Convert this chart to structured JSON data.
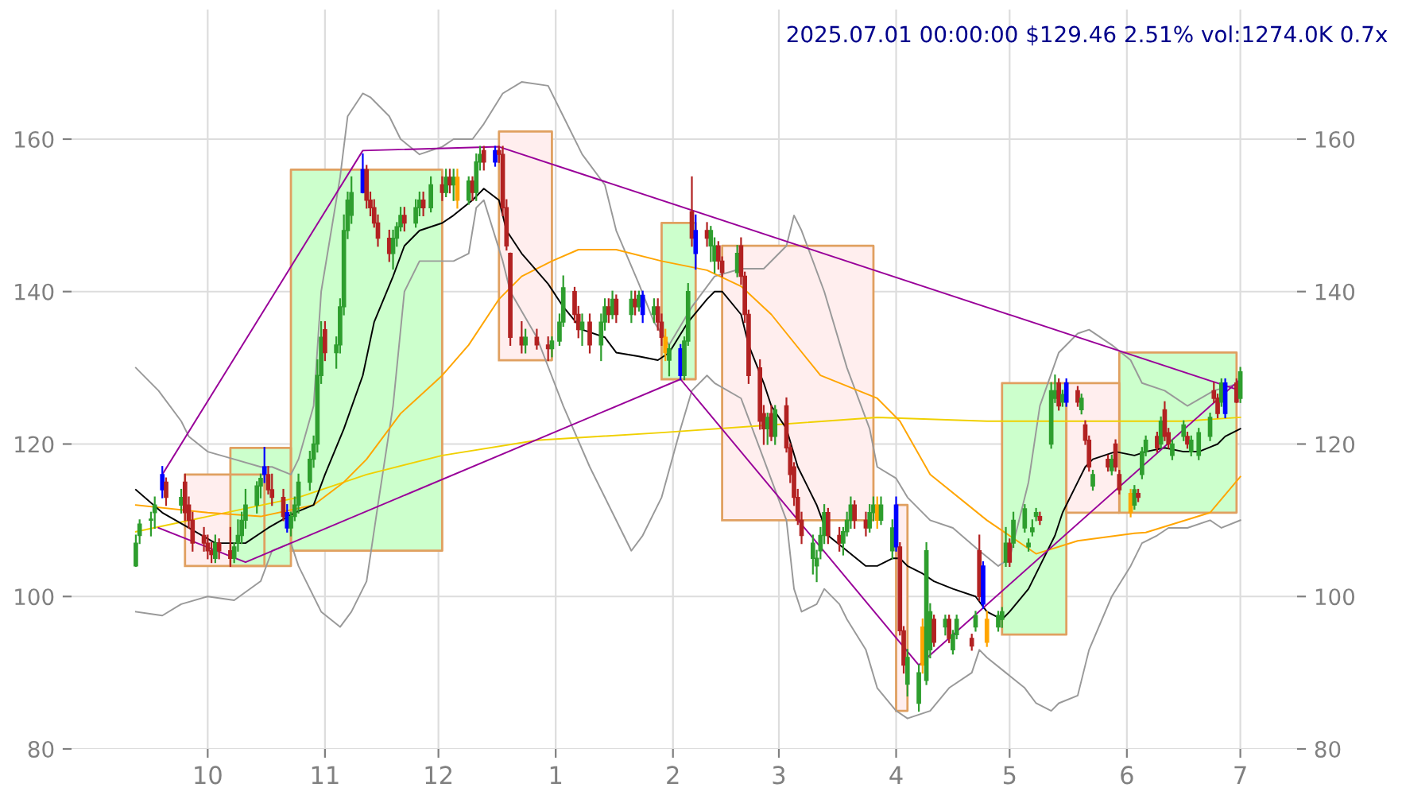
{
  "chart_data": {
    "type": "candlestick",
    "title": "2025.07.01 00:00:00 $129.46 2.51% vol:1274.0K 0.7x",
    "xlim": [
      "2024-08-26",
      "2025-07-16"
    ],
    "xticks": [
      {
        "value": "2024-10",
        "label": "10"
      },
      {
        "value": "2024-11",
        "label": "11"
      },
      {
        "value": "2024-12",
        "label": "12"
      },
      {
        "value": "2025-01",
        "label": "1"
      },
      {
        "value": "2025-02",
        "label": "2"
      },
      {
        "value": "2025-03",
        "label": "3"
      },
      {
        "value": "2025-04",
        "label": "4"
      },
      {
        "value": "2025-05",
        "label": "5"
      },
      {
        "value": "2025-06",
        "label": "6"
      },
      {
        "value": "2025-07",
        "label": "7"
      }
    ],
    "ylim": [
      80,
      177
    ],
    "yticks": [
      80,
      100,
      120,
      140,
      160
    ],
    "y2lim": [
      80,
      177
    ],
    "y2ticks": [
      80,
      100,
      120,
      140,
      160
    ],
    "grid": true,
    "x": [
      "2024-09-12",
      "2024-09-13",
      "2024-09-16",
      "2024-09-17",
      "2024-09-19",
      "2024-09-20",
      "2024-09-24",
      "2024-09-25",
      "2024-09-26",
      "2024-09-27",
      "2024-09-30",
      "2024-10-01",
      "2024-10-02",
      "2024-10-03",
      "2024-10-04",
      "2024-10-07",
      "2024-10-08",
      "2024-10-09",
      "2024-10-10",
      "2024-10-11",
      "2024-10-14",
      "2024-10-15",
      "2024-10-16",
      "2024-10-17",
      "2024-10-18",
      "2024-10-21",
      "2024-10-22",
      "2024-10-23",
      "2024-10-24",
      "2024-10-25",
      "2024-10-28",
      "2024-10-29",
      "2024-10-30",
      "2024-10-31",
      "2024-11-01",
      "2024-11-04",
      "2024-11-05",
      "2024-11-06",
      "2024-11-07",
      "2024-11-08",
      "2024-11-11",
      "2024-11-12",
      "2024-11-13",
      "2024-11-14",
      "2024-11-15",
      "2024-11-18",
      "2024-11-19",
      "2024-11-20",
      "2024-11-21",
      "2024-11-22",
      "2024-11-25",
      "2024-11-26",
      "2024-11-27",
      "2024-11-29",
      "2024-12-02",
      "2024-12-03",
      "2024-12-04",
      "2024-12-05",
      "2024-12-06",
      "2024-12-09",
      "2024-12-10",
      "2024-12-11",
      "2024-12-12",
      "2024-12-13",
      "2024-12-16",
      "2024-12-17",
      "2024-12-18",
      "2024-12-19",
      "2024-12-20",
      "2024-12-23",
      "2024-12-24",
      "2024-12-27",
      "2024-12-30",
      "2024-12-31",
      "2025-01-02",
      "2025-01-03",
      "2025-01-06",
      "2025-01-07",
      "2025-01-08",
      "2025-01-10",
      "2025-01-13",
      "2025-01-14",
      "2025-01-15",
      "2025-01-16",
      "2025-01-17",
      "2025-01-21",
      "2025-01-22",
      "2025-01-23",
      "2025-01-24",
      "2025-01-27",
      "2025-01-28",
      "2025-01-29",
      "2025-01-30",
      "2025-01-31",
      "2025-02-03",
      "2025-02-04",
      "2025-02-05",
      "2025-02-06",
      "2025-02-07",
      "2025-02-10",
      "2025-02-11",
      "2025-02-12",
      "2025-02-13",
      "2025-02-14",
      "2025-02-18",
      "2025-02-19",
      "2025-02-20",
      "2025-02-21",
      "2025-02-24",
      "2025-02-25",
      "2025-02-26",
      "2025-02-27",
      "2025-02-28",
      "2025-03-03",
      "2025-03-04",
      "2025-03-05",
      "2025-03-06",
      "2025-03-07",
      "2025-03-10",
      "2025-03-11",
      "2025-03-12",
      "2025-03-13",
      "2025-03-14",
      "2025-03-17",
      "2025-03-18",
      "2025-03-19",
      "2025-03-20",
      "2025-03-21",
      "2025-03-24",
      "2025-03-25",
      "2025-03-26",
      "2025-03-27",
      "2025-03-28",
      "2025-03-31",
      "2025-04-01",
      "2025-04-02",
      "2025-04-03",
      "2025-04-04",
      "2025-04-07",
      "2025-04-08",
      "2025-04-09",
      "2025-04-10",
      "2025-04-11",
      "2025-04-14",
      "2025-04-15",
      "2025-04-16",
      "2025-04-17",
      "2025-04-21",
      "2025-04-22",
      "2025-04-23",
      "2025-04-24",
      "2025-04-25",
      "2025-04-28",
      "2025-04-29",
      "2025-04-30",
      "2025-05-01",
      "2025-05-02",
      "2025-05-05",
      "2025-05-06",
      "2025-05-07",
      "2025-05-08",
      "2025-05-09",
      "2025-05-12",
      "2025-05-13",
      "2025-05-14",
      "2025-05-15",
      "2025-05-16",
      "2025-05-19",
      "2025-05-20",
      "2025-05-21",
      "2025-05-22",
      "2025-05-23",
      "2025-05-27",
      "2025-05-28",
      "2025-05-29",
      "2025-05-30",
      "2025-06-02",
      "2025-06-03",
      "2025-06-04",
      "2025-06-05",
      "2025-06-06",
      "2025-06-09",
      "2025-06-10",
      "2025-06-11",
      "2025-06-12",
      "2025-06-13",
      "2025-06-16",
      "2025-06-17",
      "2025-06-18",
      "2025-06-20",
      "2025-06-23",
      "2025-06-24",
      "2025-06-25",
      "2025-06-26",
      "2025-06-27",
      "2025-06-30",
      "2025-07-01"
    ],
    "ohlc": [
      [
        104,
        108,
        104,
        107
      ],
      [
        108,
        110,
        107,
        109.5
      ],
      [
        110,
        111,
        108,
        110
      ],
      [
        111,
        113,
        109,
        112
      ],
      [
        114,
        117,
        113,
        116
      ],
      [
        115,
        115.5,
        112,
        113
      ],
      [
        112,
        114,
        111,
        113
      ],
      [
        115,
        116,
        110,
        111
      ],
      [
        112,
        113,
        109,
        110
      ],
      [
        110,
        111,
        106,
        107
      ],
      [
        108,
        109,
        106,
        107
      ],
      [
        107,
        108,
        105,
        106
      ],
      [
        106,
        107,
        104.5,
        105.5
      ],
      [
        105,
        108,
        104.5,
        107
      ],
      [
        107,
        107.5,
        105,
        106
      ],
      [
        106,
        109,
        104,
        105
      ],
      [
        105,
        107,
        104.5,
        106.5
      ],
      [
        107,
        110,
        106,
        108
      ],
      [
        108,
        111,
        107,
        110
      ],
      [
        110,
        114,
        109,
        112
      ],
      [
        112,
        115,
        111,
        114.5
      ],
      [
        114.5,
        116,
        113,
        115.5
      ],
      [
        116,
        119.5,
        115,
        117
      ],
      [
        116,
        117,
        113.5,
        114
      ],
      [
        114,
        116,
        112,
        113
      ],
      [
        113,
        114,
        110,
        110.5
      ],
      [
        111,
        112,
        108.5,
        109
      ],
      [
        109,
        111,
        108,
        110.5
      ],
      [
        110.5,
        113,
        110,
        112
      ],
      [
        112,
        116,
        111,
        115
      ],
      [
        115,
        119,
        114,
        118
      ],
      [
        118,
        121,
        117,
        120
      ],
      [
        120,
        131,
        119,
        129
      ],
      [
        129,
        136,
        128,
        134
      ],
      [
        135,
        136,
        131,
        132
      ],
      [
        132,
        134,
        130,
        133
      ],
      [
        133,
        139,
        132,
        138
      ],
      [
        138,
        150,
        137,
        148
      ],
      [
        148,
        153,
        147,
        152
      ],
      [
        150,
        155,
        149,
        153
      ],
      [
        153,
        158,
        153,
        156
      ],
      [
        156,
        156.5,
        151,
        152
      ],
      [
        152,
        153,
        150,
        151
      ],
      [
        151,
        152,
        148.5,
        149
      ],
      [
        149,
        150,
        146,
        147
      ],
      [
        147,
        148,
        144,
        145
      ],
      [
        145,
        148,
        143,
        147
      ],
      [
        147,
        149,
        146,
        148.5
      ],
      [
        148.5,
        151,
        148,
        150
      ],
      [
        150,
        151,
        148,
        149
      ],
      [
        149,
        152,
        148.5,
        151
      ],
      [
        151,
        153,
        150,
        152
      ],
      [
        152,
        153,
        150,
        151
      ],
      [
        151,
        155,
        150.5,
        154
      ],
      [
        154,
        155,
        152,
        153
      ],
      [
        153,
        156,
        152.5,
        155
      ],
      [
        155,
        156,
        153,
        154
      ],
      [
        154,
        156,
        152,
        155
      ],
      [
        155,
        156,
        151,
        152
      ],
      [
        152,
        155,
        151.5,
        154.5
      ],
      [
        154.5,
        155,
        152,
        153
      ],
      [
        153,
        158,
        152,
        157
      ],
      [
        157,
        159,
        156,
        158
      ],
      [
        158.5,
        159,
        156,
        157
      ],
      [
        157,
        159,
        156.5,
        158.5
      ],
      [
        158.5,
        159,
        157,
        158
      ],
      [
        158,
        159,
        150,
        151
      ],
      [
        151,
        152,
        145.5,
        146
      ],
      [
        145,
        145,
        133,
        134
      ],
      [
        134,
        136,
        132,
        133
      ],
      [
        133,
        135,
        132,
        134
      ],
      [
        134,
        135,
        132.5,
        133
      ],
      [
        133,
        134,
        131,
        132.5
      ],
      [
        132.5,
        134,
        131.5,
        133.5
      ],
      [
        133.5,
        137,
        133,
        136
      ],
      [
        136,
        142,
        135.5,
        140.5
      ],
      [
        140,
        140.5,
        136,
        137
      ],
      [
        137,
        138,
        134,
        135
      ],
      [
        135,
        137,
        133,
        136
      ],
      [
        136,
        137,
        132,
        133
      ],
      [
        133,
        137,
        131,
        136
      ],
      [
        136,
        139,
        135,
        138
      ],
      [
        138,
        139,
        136,
        137
      ],
      [
        137,
        140,
        136.5,
        139
      ],
      [
        139,
        139.5,
        136,
        137
      ],
      [
        137,
        140,
        136,
        139
      ],
      [
        139,
        140,
        137,
        138
      ],
      [
        138,
        140,
        137.5,
        139.5
      ],
      [
        139.5,
        140,
        136,
        137
      ],
      [
        137,
        139,
        136,
        138
      ],
      [
        138,
        139,
        135,
        136
      ],
      [
        136,
        137,
        133,
        134
      ],
      [
        134,
        135,
        131,
        132
      ],
      [
        131,
        133,
        129,
        132.5
      ],
      [
        132.5,
        133,
        128.5,
        129
      ],
      [
        129,
        134,
        128.5,
        133.5
      ],
      [
        133.5,
        141,
        133,
        140
      ],
      [
        150.5,
        155,
        146,
        147
      ],
      [
        148,
        150,
        143,
        145
      ],
      [
        148,
        149,
        146,
        147
      ],
      [
        146,
        148.5,
        144,
        148
      ],
      [
        144,
        147,
        142.5,
        146
      ],
      [
        146,
        146.5,
        143,
        144
      ],
      [
        144,
        144.5,
        142,
        142.5
      ],
      [
        142.5,
        146,
        142,
        145
      ],
      [
        146,
        147,
        141,
        142
      ],
      [
        142,
        142.5,
        136,
        137
      ],
      [
        137,
        137.5,
        128,
        129
      ],
      [
        130,
        131,
        122,
        123
      ],
      [
        124,
        125,
        120,
        122
      ],
      [
        122,
        124,
        120,
        123.5
      ],
      [
        124,
        125,
        120.5,
        121
      ],
      [
        121,
        125,
        120,
        124.5
      ],
      [
        125,
        126,
        119,
        119.5
      ],
      [
        119.5,
        120,
        115,
        116
      ],
      [
        117,
        117.5,
        112,
        113
      ],
      [
        113,
        114,
        109.5,
        110
      ],
      [
        110,
        111,
        107,
        108
      ],
      [
        105,
        108,
        103,
        107
      ],
      [
        104,
        106,
        102,
        105
      ],
      [
        106,
        109,
        105,
        108
      ],
      [
        108,
        112,
        107,
        111
      ],
      [
        111,
        111.5,
        107,
        108
      ],
      [
        108,
        109,
        106,
        107
      ],
      [
        107,
        109,
        105.5,
        108.5
      ],
      [
        108.5,
        111,
        108,
        110
      ],
      [
        110,
        113,
        109,
        112
      ],
      [
        112,
        112.5,
        109,
        110
      ],
      [
        110,
        111,
        108,
        109
      ],
      [
        109,
        112,
        108.5,
        111
      ],
      [
        111,
        113,
        110,
        112
      ],
      [
        112,
        113,
        109,
        110
      ],
      [
        110,
        113,
        109.5,
        112
      ],
      [
        106,
        110,
        105,
        109
      ],
      [
        106.5,
        113,
        106,
        112
      ],
      [
        106.5,
        107,
        95,
        95.5
      ],
      [
        95.5,
        96,
        90,
        91
      ],
      [
        88.5,
        93,
        87,
        92
      ],
      [
        86,
        91,
        85,
        90
      ],
      [
        96,
        97,
        90,
        91
      ],
      [
        89,
        107,
        88.5,
        106
      ],
      [
        93,
        99,
        92,
        98
      ],
      [
        97,
        97.5,
        93.5,
        94
      ],
      [
        96,
        97.5,
        95,
        97
      ],
      [
        97,
        97.5,
        94,
        94.5
      ],
      [
        93,
        95.5,
        92.5,
        95
      ],
      [
        95,
        97.5,
        94.5,
        97
      ],
      [
        94.5,
        95,
        93,
        93.5
      ],
      [
        96,
        98,
        95.5,
        97.5
      ],
      [
        106,
        108,
        99.5,
        100
      ],
      [
        99,
        104.5,
        98.5,
        104
      ],
      [
        97,
        98,
        93.5,
        94
      ],
      [
        96,
        98,
        95.5,
        97.5
      ],
      [
        97,
        98.5,
        96,
        98
      ],
      [
        104.5,
        109,
        104,
        107
      ],
      [
        107,
        107.5,
        104,
        104.5
      ],
      [
        107,
        111,
        106.5,
        110
      ],
      [
        109,
        112,
        108.5,
        111.5
      ],
      [
        106.5,
        107.5,
        106,
        107
      ],
      [
        108.5,
        110,
        108,
        109
      ],
      [
        110.5,
        111.5,
        110,
        111
      ],
      [
        110.5,
        111,
        109.5,
        110
      ],
      [
        120,
        128,
        119.5,
        127
      ],
      [
        126,
        129,
        125.5,
        127
      ],
      [
        128,
        128.5,
        124.5,
        125
      ],
      [
        125.5,
        127,
        125,
        126.5
      ],
      [
        125.5,
        128.5,
        125,
        128
      ],
      [
        127,
        127.5,
        125,
        125.5
      ],
      [
        124.5,
        126.5,
        124,
        126
      ],
      [
        122.5,
        123,
        120,
        120.5
      ],
      [
        120.5,
        121,
        116.5,
        117
      ],
      [
        114.5,
        116.5,
        114,
        116
      ],
      [
        118,
        118.5,
        116.5,
        117
      ],
      [
        116.5,
        118.5,
        116,
        118
      ],
      [
        120,
        120.5,
        116.5,
        117
      ],
      [
        116,
        116.5,
        113.5,
        114
      ],
      [
        111,
        114,
        110.5,
        113.5
      ],
      [
        112,
        114.5,
        111.5,
        114
      ],
      [
        113.5,
        114,
        112.5,
        113
      ],
      [
        116,
        119.5,
        115.5,
        119
      ],
      [
        119,
        121,
        118.5,
        120.5
      ],
      [
        121,
        121.5,
        119,
        119.5
      ],
      [
        120,
        123.5,
        119.5,
        123
      ],
      [
        124.5,
        125.5,
        120.5,
        121
      ],
      [
        121.5,
        122,
        119.5,
        120
      ],
      [
        118.5,
        120.5,
        118,
        120
      ],
      [
        121,
        123,
        120.5,
        122.5
      ],
      [
        121,
        121.5,
        119.5,
        120
      ],
      [
        119,
        121,
        118.5,
        120.5
      ],
      [
        118.5,
        122,
        118,
        121.5
      ],
      [
        121,
        124,
        120.5,
        123.5
      ],
      [
        127,
        128,
        125.5,
        126
      ],
      [
        126,
        126.5,
        123.5,
        124
      ],
      [
        125.5,
        128.5,
        125,
        128
      ],
      [
        124,
        128.5,
        123.5,
        128
      ],
      [
        128,
        128.5,
        125.5,
        125.5
      ],
      [
        126,
        130,
        125.5,
        129.46
      ]
    ],
    "colors": [
      "#2e9e2e",
      "#2e9e2e",
      "#2e9e2e",
      "#2e9e2e",
      "#0000ff",
      "#b22222",
      "#2e9e2e",
      "#b22222",
      "#b22222",
      "#b22222",
      "#b22222",
      "#b22222",
      "#b22222",
      "#2e9e2e",
      "#b22222",
      "#b22222",
      "#2e9e2e",
      "#2e9e2e",
      "#2e9e2e",
      "#2e9e2e",
      "#2e9e2e",
      "#2e9e2e",
      "#0000ff",
      "#b22222",
      "#b22222",
      "#b22222",
      "#0000ff",
      "#2e9e2e",
      "#2e9e2e",
      "#2e9e2e",
      "#2e9e2e",
      "#2e9e2e",
      "#2e9e2e",
      "#2e9e2e",
      "#b22222",
      "#2e9e2e",
      "#2e9e2e",
      "#2e9e2e",
      "#2e9e2e",
      "#2e9e2e",
      "#0000ff",
      "#b22222",
      "#b22222",
      "#b22222",
      "#b22222",
      "#b22222",
      "#2e9e2e",
      "#2e9e2e",
      "#2e9e2e",
      "#b22222",
      "#2e9e2e",
      "#2e9e2e",
      "#b22222",
      "#2e9e2e",
      "#b22222",
      "#2e9e2e",
      "#b22222",
      "#2e9e2e",
      "#ffa500",
      "#2e9e2e",
      "#b22222",
      "#2e9e2e",
      "#2e9e2e",
      "#b22222",
      "#0000ff",
      "#b22222",
      "#b22222",
      "#b22222",
      "#b22222",
      "#b22222",
      "#2e9e2e",
      "#b22222",
      "#b22222",
      "#2e9e2e",
      "#2e9e2e",
      "#2e9e2e",
      "#b22222",
      "#b22222",
      "#2e9e2e",
      "#b22222",
      "#2e9e2e",
      "#2e9e2e",
      "#b22222",
      "#2e9e2e",
      "#b22222",
      "#2e9e2e",
      "#b22222",
      "#2e9e2e",
      "#0000ff",
      "#2e9e2e",
      "#b22222",
      "#b22222",
      "#ffa500",
      "#2e9e2e",
      "#0000ff",
      "#2e9e2e",
      "#2e9e2e",
      "#b22222",
      "#0000ff",
      "#b22222",
      "#2e9e2e",
      "#2e9e2e",
      "#b22222",
      "#b22222",
      "#2e9e2e",
      "#b22222",
      "#b22222",
      "#b22222",
      "#b22222",
      "#b22222",
      "#2e9e2e",
      "#b22222",
      "#2e9e2e",
      "#b22222",
      "#b22222",
      "#b22222",
      "#b22222",
      "#b22222",
      "#2e9e2e",
      "#2e9e2e",
      "#2e9e2e",
      "#2e9e2e",
      "#b22222",
      "#b22222",
      "#2e9e2e",
      "#2e9e2e",
      "#2e9e2e",
      "#b22222",
      "#b22222",
      "#2e9e2e",
      "#2e9e2e",
      "#ffa500",
      "#2e9e2e",
      "#2e9e2e",
      "#0000ff",
      "#b22222",
      "#b22222",
      "#2e9e2e",
      "#2e9e2e",
      "#ffa500",
      "#2e9e2e",
      "#2e9e2e",
      "#b22222",
      "#2e9e2e",
      "#b22222",
      "#2e9e2e",
      "#2e9e2e",
      "#b22222",
      "#2e9e2e",
      "#b22222",
      "#0000ff",
      "#ffa500",
      "#2e9e2e",
      "#2e9e2e",
      "#2e9e2e",
      "#b22222",
      "#2e9e2e",
      "#2e9e2e",
      "#2e9e2e",
      "#2e9e2e",
      "#2e9e2e",
      "#b22222",
      "#2e9e2e",
      "#2e9e2e",
      "#b22222",
      "#2e9e2e",
      "#0000ff",
      "#b22222",
      "#2e9e2e",
      "#b22222",
      "#b22222",
      "#2e9e2e",
      "#b22222",
      "#2e9e2e",
      "#b22222",
      "#b22222",
      "#ffa500",
      "#2e9e2e",
      "#b22222",
      "#2e9e2e",
      "#2e9e2e",
      "#b22222",
      "#2e9e2e",
      "#b22222",
      "#b22222",
      "#2e9e2e",
      "#2e9e2e",
      "#b22222",
      "#2e9e2e",
      "#2e9e2e",
      "#2e9e2e",
      "#b22222",
      "#b22222",
      "#2e9e2e",
      "#0000ff",
      "#b22222",
      "#2e9e2e"
    ],
    "series": [
      {
        "type": "area",
        "color": "#ffeeee",
        "x": [
          "2024-09-25",
          "2024-09-25",
          "2024-10-16",
          "2024-10-16",
          "2024-09-25"
        ],
        "values": [
          104,
          116,
          116,
          104,
          104
        ]
      },
      {
        "type": "area",
        "color": "#ccffcc",
        "x": [
          "2024-10-07",
          "2024-10-07",
          "2024-10-23",
          "2024-10-23",
          "2024-10-07"
        ],
        "values": [
          104,
          119.5,
          119.5,
          104,
          104
        ]
      },
      {
        "type": "area",
        "color": "#ccffcc",
        "x": [
          "2024-10-23",
          "2024-10-23",
          "2024-12-02",
          "2024-12-02",
          "2024-10-23"
        ],
        "values": [
          106,
          156,
          156,
          106,
          106
        ]
      },
      {
        "type": "area",
        "color": "#ffeeee",
        "x": [
          "2024-12-17",
          "2024-12-17",
          "2024-12-31",
          "2024-12-31",
          "2024-12-17"
        ],
        "values": [
          131,
          161,
          161,
          131,
          131
        ]
      },
      {
        "type": "area",
        "color": "#ccffcc",
        "x": [
          "2025-01-29",
          "2025-01-29",
          "2025-02-07",
          "2025-02-07",
          "2025-01-29"
        ],
        "values": [
          128.5,
          149,
          149,
          128.5,
          128.5
        ]
      },
      {
        "type": "area",
        "color": "#ffeeee",
        "x": [
          "2025-02-14",
          "2025-02-14",
          "2025-03-26",
          "2025-03-26",
          "2025-02-14"
        ],
        "values": [
          110,
          146,
          146,
          110,
          110
        ]
      },
      {
        "type": "area",
        "color": "#ffeeee",
        "x": [
          "2025-04-01",
          "2025-04-01",
          "2025-04-04",
          "2025-04-04",
          "2025-04-01"
        ],
        "values": [
          85,
          112,
          112,
          85,
          85
        ]
      },
      {
        "type": "area",
        "color": "#ccffcc",
        "x": [
          "2025-04-29",
          "2025-04-29",
          "2025-05-16",
          "2025-05-16",
          "2025-04-29"
        ],
        "values": [
          95,
          128,
          128,
          95,
          95
        ]
      },
      {
        "type": "area",
        "color": "#ffeeee",
        "x": [
          "2025-05-16",
          "2025-05-16",
          "2025-05-30",
          "2025-05-30",
          "2025-05-16"
        ],
        "values": [
          111,
          128,
          128,
          111,
          111
        ]
      },
      {
        "type": "area",
        "color": "#ccffcc",
        "x": [
          "2025-05-30",
          "2025-05-30",
          "2025-06-30",
          "2025-06-30",
          "2025-05-30"
        ],
        "values": [
          111,
          132,
          132,
          111,
          111
        ]
      },
      {
        "type": "line",
        "color": "#999999",
        "x": [
          "2024-09-12",
          "2024-09-18",
          "2024-09-24",
          "2024-09-26",
          "2024-10-01",
          "2024-10-08",
          "2024-10-15",
          "2024-10-18",
          "2024-10-23",
          "2024-10-25",
          "2024-10-29",
          "2024-10-31",
          "2024-11-05",
          "2024-11-07",
          "2024-11-11",
          "2024-11-13",
          "2024-11-18",
          "2024-11-21",
          "2024-11-26",
          "2024-12-02",
          "2024-12-05",
          "2024-12-10",
          "2024-12-13",
          "2024-12-18",
          "2024-12-23",
          "2024-12-30",
          "2025-01-03",
          "2025-01-08",
          "2025-01-14",
          "2025-01-17",
          "2025-01-23",
          "2025-01-27",
          "2025-01-31",
          "2025-02-06",
          "2025-02-12",
          "2025-02-19",
          "2025-02-25",
          "2025-03-03",
          "2025-03-05",
          "2025-03-07",
          "2025-03-13",
          "2025-03-19",
          "2025-03-25",
          "2025-03-27",
          "2025-04-01",
          "2025-04-04",
          "2025-04-10",
          "2025-04-16",
          "2025-04-23",
          "2025-04-28",
          "2025-05-01",
          "2025-05-06",
          "2025-05-09",
          "2025-05-14",
          "2025-05-19",
          "2025-05-22",
          "2025-05-28",
          "2025-06-02",
          "2025-06-05",
          "2025-06-11",
          "2025-06-17",
          "2025-06-24",
          "2025-07-01"
        ],
        "values": [
          130,
          127,
          123,
          121,
          119,
          118,
          117,
          117,
          116,
          118,
          125,
          140,
          155,
          163,
          166,
          165.5,
          163,
          160,
          158,
          159,
          160,
          160,
          162,
          166,
          167.5,
          167,
          163,
          158,
          154,
          148,
          141,
          136,
          133,
          138,
          142,
          143,
          143,
          146,
          150,
          148,
          140,
          130,
          122,
          117,
          115.5,
          113,
          110,
          109,
          106,
          104,
          105,
          115,
          125,
          132,
          134.5,
          135,
          133,
          131,
          128,
          127,
          125,
          127,
          128
        ]
      },
      {
        "type": "line",
        "color": "#999999",
        "x": [
          "2024-09-12",
          "2024-09-19",
          "2024-09-24",
          "2024-10-01",
          "2024-10-08",
          "2024-10-15",
          "2024-10-18",
          "2024-10-23",
          "2024-10-25",
          "2024-10-31",
          "2024-11-05",
          "2024-11-08",
          "2024-11-12",
          "2024-11-15",
          "2024-11-19",
          "2024-11-22",
          "2024-11-26",
          "2024-12-02",
          "2024-12-05",
          "2024-12-09",
          "2024-12-11",
          "2024-12-13",
          "2024-12-18",
          "2024-12-20",
          "2024-12-27",
          "2025-01-03",
          "2025-01-10",
          "2025-01-15",
          "2025-01-21",
          "2025-01-24",
          "2025-01-29",
          "2025-02-03",
          "2025-02-06",
          "2025-02-10",
          "2025-02-12",
          "2025-02-19",
          "2025-02-25",
          "2025-03-03",
          "2025-03-05",
          "2025-03-07",
          "2025-03-11",
          "2025-03-13",
          "2025-03-17",
          "2025-03-19",
          "2025-03-24",
          "2025-03-27",
          "2025-04-01",
          "2025-04-04",
          "2025-04-10",
          "2025-04-15",
          "2025-04-21",
          "2025-04-23",
          "2025-04-25",
          "2025-04-30",
          "2025-05-05",
          "2025-05-08",
          "2025-05-12",
          "2025-05-14",
          "2025-05-19",
          "2025-05-22",
          "2025-05-28",
          "2025-06-02",
          "2025-06-05",
          "2025-06-09",
          "2025-06-12",
          "2025-06-17",
          "2025-06-23",
          "2025-06-26",
          "2025-07-01"
        ],
        "values": [
          98,
          97.5,
          99,
          100,
          99.5,
          102,
          106,
          107,
          104,
          98,
          96,
          98,
          102,
          112,
          125,
          140,
          144,
          144,
          144,
          145,
          151,
          152,
          144,
          140,
          134,
          125,
          117,
          112,
          106,
          108,
          113,
          122,
          127,
          129,
          128,
          126,
          118,
          110,
          101,
          98,
          99,
          101,
          99,
          97,
          93,
          88,
          85,
          84,
          85,
          88,
          90,
          93,
          92,
          90,
          88,
          86,
          85,
          86,
          87,
          93,
          100,
          104,
          107,
          108,
          109,
          109,
          110,
          109,
          110
        ]
      },
      {
        "type": "line",
        "color": "#f0d000",
        "x": [
          "2024-09-12",
          "2024-10-01",
          "2024-10-25",
          "2024-11-12",
          "2024-12-02",
          "2024-12-27",
          "2025-01-29",
          "2025-02-27",
          "2025-03-27",
          "2025-04-25",
          "2025-05-23",
          "2025-06-16",
          "2025-07-01"
        ],
        "values": [
          108.5,
          110.5,
          113,
          116,
          118.5,
          120.5,
          121.5,
          122.5,
          123.5,
          123,
          123,
          123,
          123.5
        ]
      },
      {
        "type": "line",
        "color": "#ffa500",
        "x": [
          "2024-09-12",
          "2024-10-01",
          "2024-10-15",
          "2024-10-29",
          "2024-11-06",
          "2024-11-12",
          "2024-11-21",
          "2024-12-02",
          "2024-12-09",
          "2024-12-17",
          "2024-12-23",
          "2024-12-31",
          "2025-01-07",
          "2025-01-17",
          "2025-01-29",
          "2025-02-10",
          "2025-02-19",
          "2025-02-27",
          "2025-03-12",
          "2025-03-27",
          "2025-04-02",
          "2025-04-10",
          "2025-04-25",
          "2025-05-08",
          "2025-05-19",
          "2025-06-03",
          "2025-06-06",
          "2025-06-23",
          "2025-07-01"
        ],
        "values": [
          112,
          111,
          110.5,
          112,
          115,
          118,
          124,
          129,
          133,
          139,
          142,
          144,
          145.5,
          145.5,
          144,
          142.8,
          140.7,
          137,
          129,
          126,
          123,
          116,
          110,
          105.6,
          107.3,
          108.3,
          108.4,
          111,
          115.7
        ]
      },
      {
        "type": "line",
        "color": "#000000",
        "x": [
          "2024-09-12",
          "2024-09-19",
          "2024-09-26",
          "2024-10-03",
          "2024-10-11",
          "2024-10-17",
          "2024-10-24",
          "2024-10-29",
          "2024-11-01",
          "2024-11-06",
          "2024-11-11",
          "2024-11-14",
          "2024-11-19",
          "2024-11-22",
          "2024-11-26",
          "2024-12-02",
          "2024-12-05",
          "2024-12-10",
          "2024-12-12",
          "2024-12-13",
          "2024-12-17",
          "2024-12-19",
          "2024-12-23",
          "2024-12-30",
          "2025-01-03",
          "2025-01-08",
          "2025-01-14",
          "2025-01-17",
          "2025-01-23",
          "2025-01-28",
          "2025-01-31",
          "2025-02-05",
          "2025-02-10",
          "2025-02-12",
          "2025-02-14",
          "2025-02-19",
          "2025-02-21",
          "2025-02-25",
          "2025-02-27",
          "2025-03-03",
          "2025-03-06",
          "2025-03-11",
          "2025-03-14",
          "2025-03-19",
          "2025-03-24",
          "2025-03-27",
          "2025-03-31",
          "2025-04-02",
          "2025-04-04",
          "2025-04-08",
          "2025-04-11",
          "2025-04-16",
          "2025-04-22",
          "2025-04-25",
          "2025-04-29",
          "2025-05-01",
          "2025-05-06",
          "2025-05-09",
          "2025-05-13",
          "2025-05-15",
          "2025-05-19",
          "2025-05-21",
          "2025-05-23",
          "2025-05-29",
          "2025-06-03",
          "2025-06-06",
          "2025-06-11",
          "2025-06-16",
          "2025-06-20",
          "2025-06-25",
          "2025-06-27",
          "2025-07-01"
        ],
        "values": [
          114,
          111,
          109,
          107,
          107,
          109,
          111,
          112,
          116,
          122,
          129,
          136,
          142,
          146,
          148,
          149,
          150,
          152,
          153,
          153.5,
          152,
          148,
          145,
          141,
          138,
          135,
          134,
          132,
          131.5,
          131,
          132,
          136,
          139,
          140,
          140,
          137,
          133,
          128,
          125,
          122,
          117,
          112,
          108,
          106,
          104,
          104,
          105,
          105,
          104,
          103,
          102,
          101,
          100,
          98,
          97,
          98,
          101,
          104,
          108,
          111,
          115,
          117,
          118,
          119,
          118.5,
          119,
          119.5,
          119,
          119,
          120,
          121,
          122
        ]
      },
      {
        "type": "line",
        "color": "#990099",
        "x": [
          "2024-09-19",
          "2024-11-11",
          "2024-12-17",
          "2025-07-01"
        ],
        "values": [
          116,
          158.5,
          159,
          127
        ]
      },
      {
        "type": "line",
        "color": "#990099",
        "x": [
          "2024-09-18",
          "2024-10-11",
          "2025-02-03",
          "2025-04-07",
          "2025-07-01"
        ],
        "values": [
          109,
          104.5,
          128.5,
          91,
          128.5
        ]
      }
    ]
  }
}
